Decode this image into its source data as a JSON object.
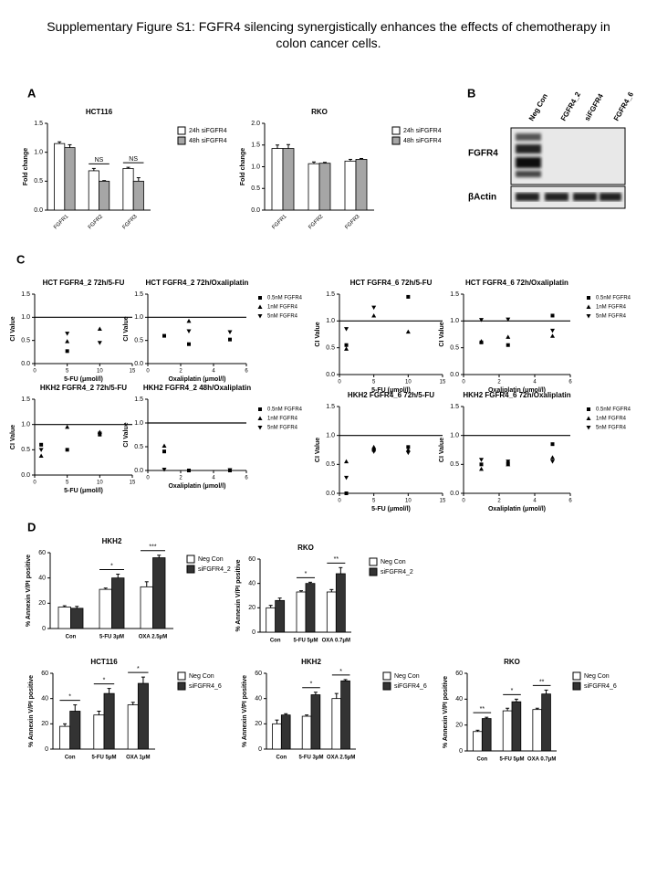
{
  "title": "Supplementary Figure S1: FGFR4 silencing synergistically enhances the effects of chemotherapy in colon cancer cells.",
  "panel_labels": [
    "A",
    "B",
    "C",
    "D"
  ],
  "blot": {
    "lanes": [
      "Neg Con",
      "FGFR4_2",
      "siFGFR4",
      "FGFR4_6"
    ],
    "rows": [
      "FGFR4",
      "βActin"
    ]
  },
  "chart_data": [
    {
      "type": "bar",
      "title": "HCT116",
      "ylabel": "Fold change",
      "categories": [
        "FGFR1",
        "FGFR2",
        "FGFR3"
      ],
      "series": [
        {
          "name": "24h siFGFR4",
          "color": "#ffffff",
          "values": [
            1.15,
            0.68,
            0.72
          ],
          "errors": [
            0.03,
            0.04,
            0.02
          ]
        },
        {
          "name": "48h siFGFR4",
          "color": "#a6a6a6",
          "values": [
            1.08,
            0.5,
            0.5
          ],
          "errors": [
            0.05,
            0.01,
            0.06
          ]
        }
      ],
      "significance": [
        null,
        "NS",
        "NS"
      ],
      "ylim": [
        0,
        1.5
      ],
      "yticks": [
        {
          "value": 0,
          "label": "0.0"
        },
        0.5,
        {
          "value": 1,
          "label": "1.0"
        },
        1.5
      ]
    },
    {
      "type": "bar",
      "title": "RKO",
      "ylabel": "Fold change",
      "categories": [
        "FGFR1",
        "FGFR2",
        "FGFR3"
      ],
      "series": [
        {
          "name": "24h siFGFR4",
          "color": "#ffffff",
          "values": [
            1.42,
            1.07,
            1.13
          ],
          "errors": [
            0.08,
            0.04,
            0.04
          ]
        },
        {
          "name": "48h siFGFR4",
          "color": "#a6a6a6",
          "values": [
            1.42,
            1.08,
            1.17
          ],
          "errors": [
            0.09,
            0.02,
            0.02
          ]
        }
      ],
      "ylim": [
        0,
        2
      ],
      "yticks": [
        {
          "value": 0,
          "label": "0.0"
        },
        0.5,
        {
          "value": 1,
          "label": "1.0"
        },
        1.5,
        {
          "value": 2,
          "label": "2.0"
        }
      ]
    },
    {
      "type": "scatter",
      "title": "HCT FGFR4_2 72h/5-FU",
      "xlabel": "5-FU (μmol/l)",
      "ylabel": "CI Value",
      "refline": 1,
      "series": [
        {
          "marker": "square",
          "color": "#000000",
          "x": [
            5
          ],
          "values": [
            0.27
          ]
        },
        {
          "marker": "triangle",
          "color": "#000000",
          "x": [
            5,
            10
          ],
          "values": [
            0.48,
            0.75
          ]
        },
        {
          "marker": "triangle-down",
          "color": "#000000",
          "x": [
            5,
            10
          ],
          "values": [
            0.65,
            0.45
          ]
        }
      ],
      "xlim": [
        0,
        15
      ],
      "xticks": [
        0,
        5,
        10,
        15
      ],
      "ylim": [
        0,
        1.5
      ],
      "yticks": [
        {
          "value": 0,
          "label": "0.0"
        },
        0.5,
        {
          "value": 1,
          "label": "1.0"
        },
        1.5
      ]
    },
    {
      "type": "scatter",
      "title": "HCT FGFR4_2 72h/Oxaliplatin",
      "xlabel": "Oxaliplatin (μmol/l)",
      "ylabel": "CI Value",
      "refline": 1,
      "series": [
        {
          "name": "0.5nM FGFR4",
          "marker": "square",
          "color": "#000000",
          "x": [
            1,
            2.5,
            5
          ],
          "values": [
            0.6,
            0.42,
            0.52
          ]
        },
        {
          "name": "1nM FGFR4",
          "marker": "triangle",
          "color": "#000000",
          "x": [
            2.5
          ],
          "values": [
            0.92
          ]
        },
        {
          "name": "5nM FGFR4",
          "marker": "triangle-down",
          "color": "#000000",
          "x": [
            2.5,
            5
          ],
          "values": [
            0.7,
            0.68
          ]
        }
      ],
      "xlim": [
        0,
        6
      ],
      "xticks": [
        0,
        2,
        4,
        6
      ],
      "ylim": [
        0,
        1.5
      ],
      "yticks": [
        {
          "value": 0,
          "label": "0.0"
        },
        0.5,
        {
          "value": 1,
          "label": "1.0"
        },
        1.5
      ]
    },
    {
      "type": "scatter",
      "title": "HCT FGFR4_6 72h/5-FU",
      "xlabel": "5-FU (μmol/l)",
      "ylabel": "CI Value",
      "refline": 1,
      "series": [
        {
          "marker": "square",
          "color": "#000000",
          "x": [
            1,
            10
          ],
          "values": [
            0.55,
            1.45
          ]
        },
        {
          "marker": "triangle",
          "color": "#000000",
          "x": [
            1,
            5,
            10
          ],
          "values": [
            0.48,
            1.1,
            0.8
          ]
        },
        {
          "marker": "triangle-down",
          "color": "#000000",
          "x": [
            1,
            5
          ],
          "values": [
            0.85,
            1.25
          ]
        }
      ],
      "xlim": [
        0,
        15
      ],
      "xticks": [
        0,
        5,
        10,
        15
      ],
      "ylim": [
        0,
        1.5
      ],
      "yticks": [
        {
          "value": 0,
          "label": "0.0"
        },
        0.5,
        {
          "value": 1,
          "label": "1.0"
        },
        1.5
      ]
    },
    {
      "type": "scatter",
      "title": "HCT FGFR4_6 72h/Oxaliplatin",
      "xlabel": "Oxaliplatin (μmol/l)",
      "ylabel": "CI Value",
      "refline": 1,
      "series": [
        {
          "name": "0.5nM FGFR4",
          "marker": "square",
          "color": "#000000",
          "x": [
            1,
            2.5,
            5
          ],
          "values": [
            0.6,
            0.55,
            1.1
          ]
        },
        {
          "name": "1nM FGFR4",
          "marker": "triangle",
          "color": "#000000",
          "x": [
            1,
            2.5,
            5
          ],
          "values": [
            0.62,
            0.7,
            0.72
          ]
        },
        {
          "name": "5nM FGFR4",
          "marker": "triangle-down",
          "color": "#000000",
          "x": [
            1,
            2.5,
            5
          ],
          "values": [
            1.02,
            1.03,
            0.82
          ]
        }
      ],
      "xlim": [
        0,
        6
      ],
      "xticks": [
        0,
        2,
        4,
        6
      ],
      "ylim": [
        0,
        1.5
      ],
      "yticks": [
        {
          "value": 0,
          "label": "0.0"
        },
        0.5,
        {
          "value": 1,
          "label": "1.0"
        },
        1.5
      ]
    },
    {
      "type": "scatter",
      "title": "HKH2 FGFR4_2 72h/5-FU",
      "xlabel": "5-FU (μmol/l)",
      "ylabel": "CI Value",
      "refline": 1,
      "series": [
        {
          "marker": "square",
          "color": "#000000",
          "x": [
            1,
            5,
            10
          ],
          "values": [
            0.6,
            0.5,
            0.8
          ]
        },
        {
          "marker": "triangle",
          "color": "#000000",
          "x": [
            1,
            5,
            10
          ],
          "values": [
            0.38,
            0.95,
            0.85
          ]
        },
        {
          "marker": "triangle-down",
          "color": "#000000",
          "x": [
            1,
            10
          ],
          "values": [
            0.5,
            0.82
          ]
        }
      ],
      "xlim": [
        0,
        15
      ],
      "xticks": [
        0,
        5,
        10,
        15
      ],
      "ylim": [
        0,
        1.5
      ],
      "yticks": [
        {
          "value": 0,
          "label": "0.0"
        },
        0.5,
        {
          "value": 1,
          "label": "1.0"
        },
        1.5
      ]
    },
    {
      "type": "scatter",
      "title": "HKH2 FGFR4_2 48h/Oxaliplatin",
      "xlabel": "Oxaliplatin (μmol/l)",
      "ylabel": "CI Value",
      "refline": 1,
      "series": [
        {
          "name": "0.5nM FGFR4",
          "marker": "square",
          "color": "#000000",
          "x": [
            1,
            2.5,
            5
          ],
          "values": [
            0.4,
            0,
            0
          ]
        },
        {
          "name": "1nM FGFR4",
          "marker": "triangle",
          "color": "#000000",
          "x": [
            1
          ],
          "values": [
            0.52
          ]
        },
        {
          "name": "5nM FGFR4",
          "marker": "triangle-down",
          "color": "#000000",
          "x": [
            1,
            5
          ],
          "values": [
            0.02,
            0.01
          ]
        }
      ],
      "xlim": [
        0,
        6
      ],
      "xticks": [
        0,
        2,
        4,
        6
      ],
      "ylim": [
        0,
        1.5
      ],
      "yticks": [
        {
          "value": 0,
          "label": "0.0"
        },
        0.5,
        {
          "value": 1,
          "label": "1.0"
        },
        1.5
      ]
    },
    {
      "type": "scatter",
      "title": "HKH2 FGFR4_6 72h/5-FU",
      "xlabel": "5-FU (μmol/l)",
      "ylabel": "CI Value",
      "refline": 1,
      "series": [
        {
          "marker": "square",
          "color": "#000000",
          "x": [
            1,
            5,
            10
          ],
          "values": [
            0,
            0.75,
            0.8
          ]
        },
        {
          "marker": "triangle",
          "color": "#000000",
          "x": [
            1,
            5,
            10
          ],
          "values": [
            0.55,
            0.8,
            0.75
          ]
        },
        {
          "marker": "triangle-down",
          "color": "#000000",
          "x": [
            1,
            5,
            10
          ],
          "values": [
            0.27,
            0.72,
            0.7
          ]
        }
      ],
      "xlim": [
        0,
        15
      ],
      "xticks": [
        0,
        5,
        10,
        15
      ],
      "ylim": [
        0,
        1.5
      ],
      "yticks": [
        {
          "value": 0,
          "label": "0.0"
        },
        0.5,
        {
          "value": 1,
          "label": "1.0"
        },
        1.5
      ]
    },
    {
      "type": "scatter",
      "title": "HKH2 FGFR4_6 72h/Oxaliplatin",
      "xlabel": "Oxaliplatin (μmol/l)",
      "ylabel": "CI Value",
      "refline": 1,
      "series": [
        {
          "name": "0.5nM FGFR4",
          "marker": "square",
          "color": "#000000",
          "x": [
            1,
            2.5,
            5
          ],
          "values": [
            0.5,
            0.52,
            0.85
          ]
        },
        {
          "name": "1nM FGFR4",
          "marker": "triangle",
          "color": "#000000",
          "x": [
            1,
            2.5,
            5
          ],
          "values": [
            0.42,
            0.5,
            0.62
          ]
        },
        {
          "name": "5nM FGFR4",
          "marker": "triangle-down",
          "color": "#000000",
          "x": [
            1,
            2.5,
            5
          ],
          "values": [
            0.58,
            0.55,
            0.55
          ]
        }
      ],
      "xlim": [
        0,
        6
      ],
      "xticks": [
        0,
        2,
        4,
        6
      ],
      "ylim": [
        0,
        1.5
      ],
      "yticks": [
        {
          "value": 0,
          "label": "0.0"
        },
        0.5,
        {
          "value": 1,
          "label": "1.0"
        },
        1.5
      ]
    },
    {
      "type": "bar",
      "title": "HKH2",
      "ylabel": "% Annexin V/PI positive",
      "categories": [
        "Con",
        "5-FU 3μM",
        "OXA 2.5μM"
      ],
      "series": [
        {
          "name": "Neg Con",
          "color": "#ffffff",
          "values": [
            17,
            31,
            33
          ],
          "errors": [
            1,
            1,
            4
          ]
        },
        {
          "name": "siFGFR4_2",
          "color": "#333333",
          "values": [
            16,
            40,
            56
          ],
          "errors": [
            1.5,
            3,
            2
          ]
        }
      ],
      "significance": [
        null,
        "*",
        "***"
      ],
      "ylim": [
        0,
        60
      ],
      "yticks": [
        0,
        20,
        40,
        60
      ]
    },
    {
      "type": "bar",
      "title": "RKO",
      "ylabel": "% Annexin V/PI positive",
      "categories": [
        "Con",
        "5-FU 5μM",
        "OXA 0.7μM"
      ],
      "series": [
        {
          "name": "Neg Con",
          "color": "#ffffff",
          "values": [
            20,
            33,
            33
          ],
          "errors": [
            2,
            1,
            2
          ]
        },
        {
          "name": "siFGFR4_2",
          "color": "#333333",
          "values": [
            26,
            40,
            48
          ],
          "errors": [
            2,
            1,
            5
          ]
        }
      ],
      "significance": [
        null,
        "*",
        "**"
      ],
      "ylim": [
        0,
        60
      ],
      "yticks": [
        0,
        20,
        40,
        60
      ]
    },
    {
      "type": "bar",
      "title": "HCT116",
      "ylabel": "% Annexin V/PI positive",
      "categories": [
        "Con",
        "5-FU 5μM",
        "OXA 1μM"
      ],
      "series": [
        {
          "name": "Neg Con",
          "color": "#ffffff",
          "values": [
            18,
            27,
            35
          ],
          "errors": [
            2,
            3,
            2
          ]
        },
        {
          "name": "siFGFR4_6",
          "color": "#333333",
          "values": [
            30,
            44,
            52
          ],
          "errors": [
            5,
            4,
            5
          ]
        }
      ],
      "significance": [
        "*",
        "*",
        "*"
      ],
      "ylim": [
        0,
        60
      ],
      "yticks": [
        0,
        20,
        40,
        60
      ]
    },
    {
      "type": "bar",
      "title": "HKH2",
      "ylabel": "% Annexin V/PI positive",
      "categories": [
        "Con",
        "5-FU 3μM",
        "OXA 2.5μM"
      ],
      "series": [
        {
          "name": "Neg Con",
          "color": "#ffffff",
          "values": [
            20,
            26,
            40
          ],
          "errors": [
            3,
            1,
            4
          ]
        },
        {
          "name": "siFGFR4_6",
          "color": "#333333",
          "values": [
            27,
            43,
            54
          ],
          "errors": [
            1,
            2,
            1
          ]
        }
      ],
      "significance": [
        null,
        "*",
        "*"
      ],
      "ylim": [
        0,
        60
      ],
      "yticks": [
        0,
        20,
        40,
        60
      ]
    },
    {
      "type": "bar",
      "title": "RKO",
      "ylabel": "% Annexin V/PI positive",
      "categories": [
        "Con",
        "5-FU 5μM",
        "OXA 0.7μM"
      ],
      "series": [
        {
          "name": "Neg Con",
          "color": "#ffffff",
          "values": [
            15,
            31,
            32
          ],
          "errors": [
            1,
            2,
            1
          ]
        },
        {
          "name": "siFGFR4_6",
          "color": "#333333",
          "values": [
            25,
            38,
            44
          ],
          "errors": [
            1,
            2,
            3
          ]
        }
      ],
      "significance": [
        "**",
        "*",
        "**"
      ],
      "ylim": [
        0,
        60
      ],
      "yticks": [
        0,
        20,
        40,
        60
      ]
    }
  ]
}
